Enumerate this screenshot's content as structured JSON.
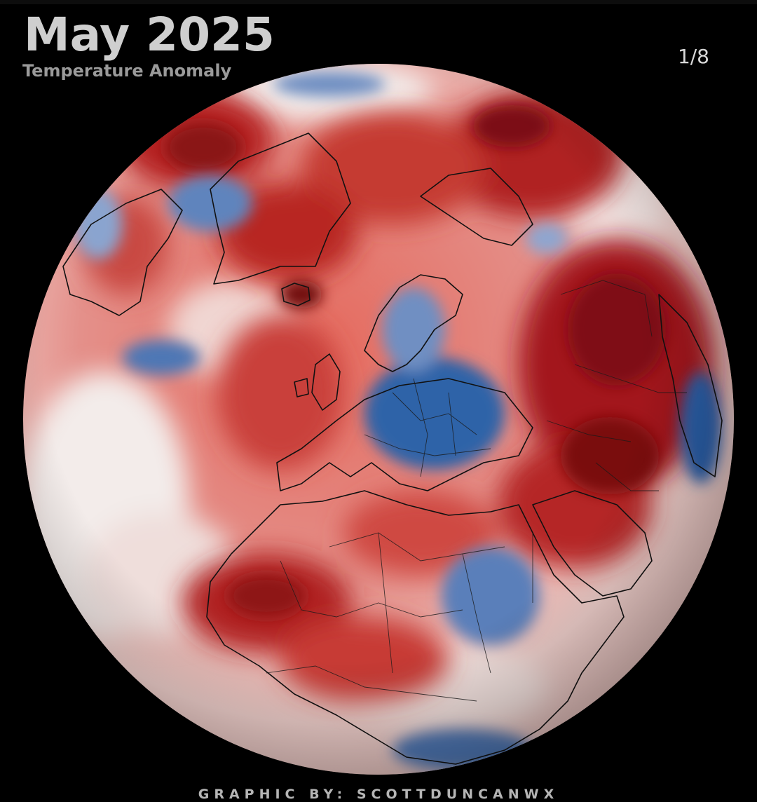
{
  "header": {
    "title": "May 2025",
    "subtitle": "Temperature Anomaly",
    "page_counter": "1/8"
  },
  "footer": {
    "credit": "GRAPHIC BY: SCOTTDUNCANWX"
  },
  "colors": {
    "background": "#000000",
    "warm_anomaly": "#b0201e",
    "strong_warm_anomaly": "#7a0e10",
    "neutral": "#f2e8e6",
    "cool_anomaly": "#2f6bb0",
    "strong_cool_anomaly": "#1c4f90"
  }
}
